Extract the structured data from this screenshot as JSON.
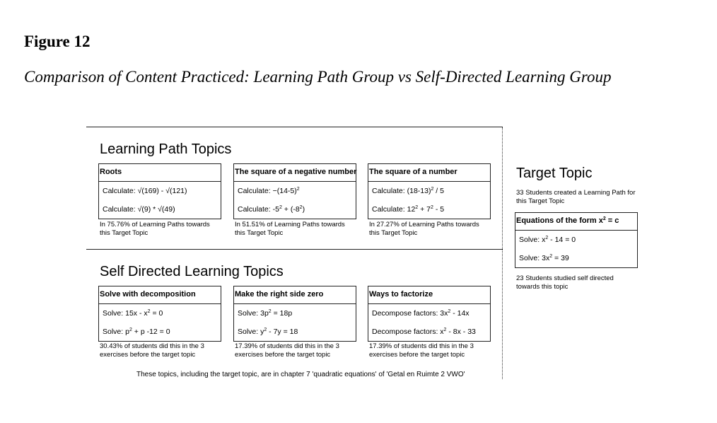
{
  "figure": {
    "label": "Figure 12",
    "title": "Comparison of Content Practiced: Learning Path Group vs Self-Directed Learning Group"
  },
  "learning_path": {
    "heading": "Learning Path Topics",
    "topics": [
      {
        "title": "Roots",
        "ex1": [
          "Calculate: √(169) - √(121)"
        ],
        "ex2": [
          "Calculate: √(9) * √(49)"
        ],
        "note": [
          "In 75.76% of Learning Paths towards",
          "this Target Topic"
        ]
      },
      {
        "title": "The square of a negative number",
        "ex1": [
          "Calculate: −(14-5)",
          "2",
          ""
        ],
        "ex2": [
          "Calculate: -5",
          "2",
          " + (-8",
          "2",
          ")"
        ],
        "note": [
          "In 51.51% of Learning Paths towards",
          "this Target Topic"
        ]
      },
      {
        "title": "The square of a number",
        "ex1": [
          "Calculate: (18-13)",
          "2",
          " / 5"
        ],
        "ex2": [
          "Calculate: 12",
          "2",
          " + 7",
          "2",
          " - 5"
        ],
        "note": [
          "In 27.27% of Learning Paths towards",
          "this Target Topic"
        ]
      }
    ]
  },
  "self_directed": {
    "heading": "Self Directed Learning Topics",
    "topics": [
      {
        "title": "Solve with decomposition",
        "ex1": [
          "Solve: 15x - x",
          "2",
          " = 0"
        ],
        "ex2": [
          "Solve: p",
          "2",
          " + p -12 = 0"
        ],
        "note": [
          "30.43% of students did this in the 3",
          "exercises before the target topic"
        ]
      },
      {
        "title": "Make the right side zero",
        "ex1": [
          "Solve: 3p",
          "2",
          " = 18p"
        ],
        "ex2": [
          "Solve: y",
          "2",
          " - 7y = 18"
        ],
        "note": [
          "17.39% of students did this in the 3",
          "exercises before the target topic"
        ]
      },
      {
        "title": "Ways to factorize",
        "ex1": [
          "Decompose factors: 3x",
          "2",
          " - 14x"
        ],
        "ex2": [
          "Decompose factors: x",
          "2",
          " - 8x - 33"
        ],
        "note": [
          "17.39% of students did this in the 3",
          "exercises before the target topic"
        ]
      }
    ],
    "footer": "These topics, including the target topic, are in chapter 7 'quadratic equations' of 'Getal en Ruimte 2 VWO'"
  },
  "target": {
    "heading": "Target Topic",
    "note_top": [
      "33 Students created a Learning Path for",
      "this Target Topic"
    ],
    "title": [
      "Equations of the form x",
      "2",
      " = c"
    ],
    "ex1": [
      "Solve: x",
      "2",
      " - 14 = 0"
    ],
    "ex2": [
      "Solve: 3x",
      "2",
      " = 39"
    ],
    "note_bottom": [
      "23 Students studied self directed",
      "towards this topic"
    ]
  }
}
